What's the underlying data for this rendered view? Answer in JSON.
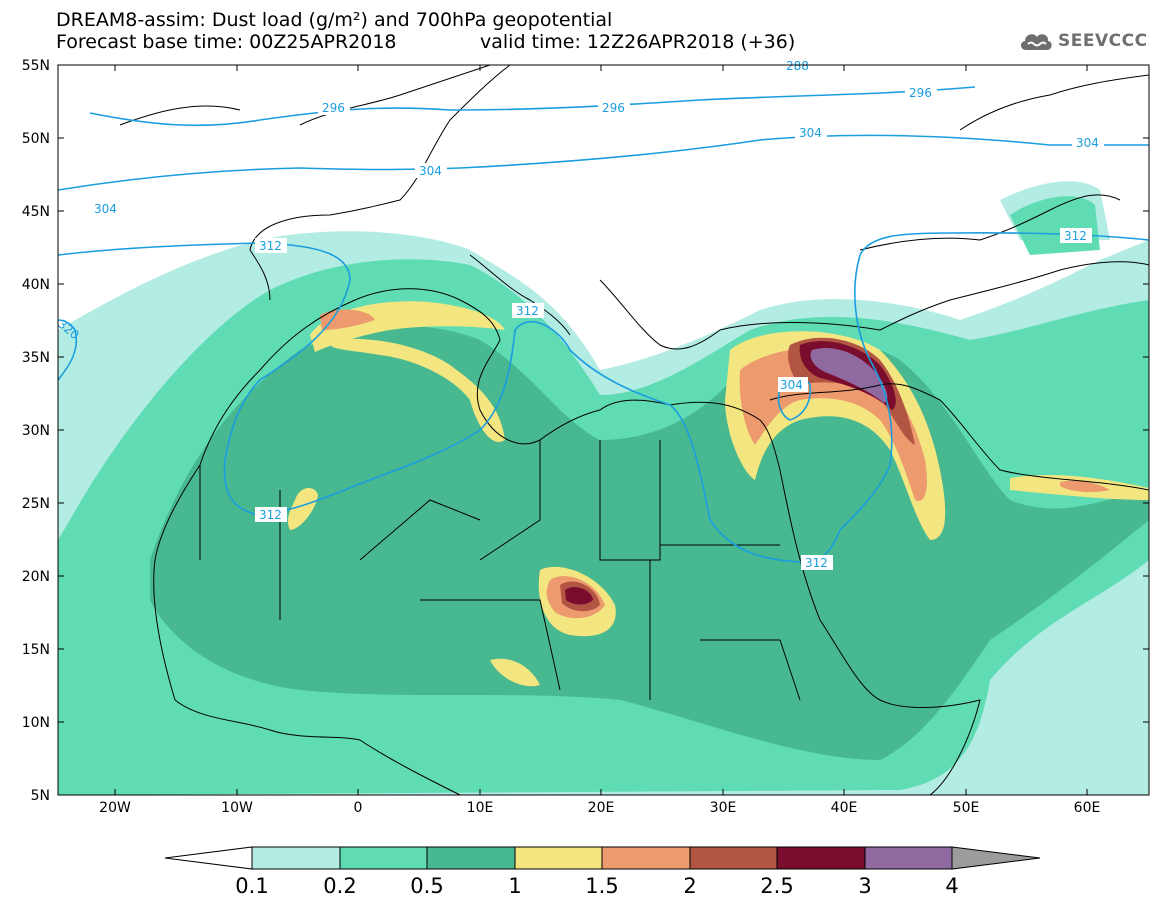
{
  "header": {
    "title_line1": "DREAM8-assim: Dust load (g/m²) and 700hPa geopotential",
    "title_line2_left": "Forecast base time: 00Z25APR2018",
    "title_line2_right": "valid time: 12Z26APR2018 (+36)"
  },
  "logo": {
    "text": "SEEVCCC",
    "icon": "cloud-icon"
  },
  "map": {
    "lat_labels": [
      "55N",
      "50N",
      "45N",
      "40N",
      "35N",
      "30N",
      "25N",
      "20N",
      "15N",
      "10N",
      "5N"
    ],
    "lon_labels": [
      "20W",
      "10W",
      "0",
      "10E",
      "20E",
      "30E",
      "40E",
      "50E",
      "60E"
    ],
    "contour_labels": {
      "c296_a": "296",
      "c296_b": "296",
      "c296_c": "296",
      "c288": "288",
      "c304_a": "304",
      "c304_b": "304",
      "c304_c": "304",
      "c304_d": "304",
      "c312_a": "312",
      "c312_b": "312",
      "c312_c": "312",
      "c312_d": "312",
      "c312_e": "312",
      "c320": "320"
    }
  },
  "colorbar": {
    "levels": [
      "0.1",
      "0.2",
      "0.5",
      "1",
      "1.5",
      "2",
      "2.5",
      "3",
      "4"
    ],
    "colors": [
      "#ffffff",
      "#b3ece3",
      "#5fdcb3",
      "#48b890",
      "#f3e681",
      "#ec9a6e",
      "#b35543",
      "#7a0c2e",
      "#8e6aa0",
      "#9c9c9c"
    ]
  },
  "colors": {
    "background": "#ffffff",
    "contour": "#1a9ee0",
    "borders": "#000000"
  }
}
